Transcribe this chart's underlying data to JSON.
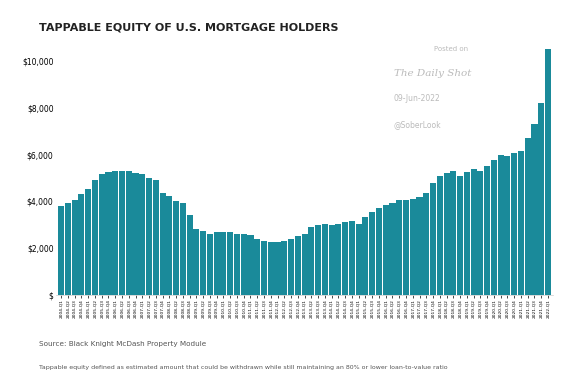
{
  "title": "TAPPABLE EQUITY OF U.S. MORTGAGE HOLDERS",
  "bar_color": "#1a8a9a",
  "background_color": "#ffffff",
  "source_text": "Source: Black Knight McDash Property Module",
  "footnote_text": "Tappable equity defined as estimated amount that could be withdrawn while still maintaining an 80% or lower loan-to-value ratio",
  "watermark_line1": "Posted on",
  "watermark_line2": "The Daily Shot",
  "watermark_line3": "09-Jun-2022",
  "watermark_line4": "@SoberLook",
  "approx_values": {
    "2004-Q1": 3800,
    "2004-Q2": 3950,
    "2004-Q3": 4050,
    "2004-Q4": 4300,
    "2005-Q1": 4550,
    "2005-Q2": 4900,
    "2005-Q3": 5150,
    "2005-Q4": 5250,
    "2006-Q1": 5300,
    "2006-Q2": 5300,
    "2006-Q3": 5300,
    "2006-Q4": 5200,
    "2007-Q1": 5150,
    "2007-Q2": 5000,
    "2007-Q3": 4900,
    "2007-Q4": 4350,
    "2008-Q1": 4250,
    "2008-Q2": 4000,
    "2008-Q3": 3950,
    "2008-Q4": 3400,
    "2009-Q1": 2800,
    "2009-Q2": 2750,
    "2009-Q3": 2600,
    "2009-Q4": 2700,
    "2010-Q1": 2700,
    "2010-Q2": 2700,
    "2010-Q3": 2600,
    "2010-Q4": 2600,
    "2011-Q1": 2550,
    "2011-Q2": 2400,
    "2011-Q3": 2300,
    "2011-Q4": 2250,
    "2012-Q1": 2250,
    "2012-Q2": 2300,
    "2012-Q3": 2400,
    "2012-Q4": 2500,
    "2013-Q1": 2600,
    "2013-Q2": 2900,
    "2013-Q3": 3000,
    "2013-Q4": 3050,
    "2014-Q1": 3000,
    "2014-Q2": 3050,
    "2014-Q3": 3100,
    "2014-Q4": 3150,
    "2015-Q1": 3050,
    "2015-Q2": 3350,
    "2015-Q3": 3550,
    "2015-Q4": 3700,
    "2016-Q1": 3850,
    "2016-Q2": 3950,
    "2016-Q3": 4050,
    "2016-Q4": 4050,
    "2017-Q1": 4100,
    "2017-Q2": 4200,
    "2017-Q3": 4350,
    "2017-Q4": 4800,
    "2018-Q1": 5100,
    "2018-Q2": 5200,
    "2018-Q3": 5300,
    "2018-Q4": 5100,
    "2019-Q1": 5250,
    "2019-Q2": 5400,
    "2019-Q3": 5300,
    "2019-Q4": 5500,
    "2020-Q1": 5750,
    "2020-Q2": 6000,
    "2020-Q3": 5950,
    "2020-Q4": 6050,
    "2021-Q1": 6150,
    "2021-Q2": 6700,
    "2021-Q3": 7300,
    "2021-Q4": 8200,
    "2022-Q1": 10500
  },
  "ylim": [
    0,
    11000
  ],
  "yticks": [
    0,
    2000,
    4000,
    6000,
    8000,
    10000
  ]
}
